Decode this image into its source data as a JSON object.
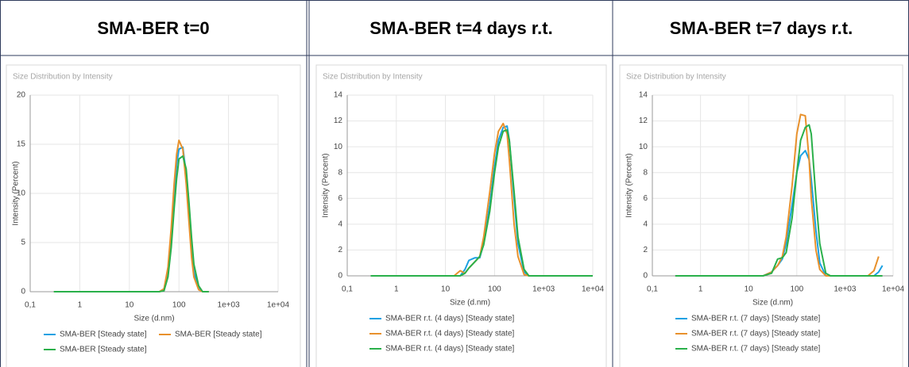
{
  "chart_data": [
    {
      "type": "line",
      "title": "SMA-BER t=0",
      "subtitle": "Size Distribution by Intensity",
      "xlabel": "Size (d.nm)",
      "ylabel": "Intensity (Percent)",
      "log_x": true,
      "grid": true,
      "xlim": [
        0.1,
        10000
      ],
      "xticks": [
        {
          "value": 0.1,
          "label": "0,1"
        },
        1,
        10,
        100,
        {
          "value": 1000,
          "label": "1e+03"
        },
        {
          "value": 10000,
          "label": "1e+04"
        }
      ],
      "ylim": [
        0,
        20
      ],
      "yticks": [
        0,
        5,
        10,
        15,
        20
      ],
      "x": [
        0.3,
        40,
        50,
        60,
        70,
        80,
        90,
        100,
        120,
        140,
        160,
        180,
        200,
        250,
        300,
        400
      ],
      "series": [
        {
          "name": "SMA-BER  [Steady state]",
          "color": "#1ba1e2",
          "values": [
            0,
            0,
            0.2,
            2,
            5.5,
            10,
            13,
            14.5,
            14.7,
            12,
            8,
            4.5,
            2,
            0.3,
            0,
            0
          ]
        },
        {
          "name": "SMA-BER  [Steady state]",
          "color": "#e8912c",
          "values": [
            0,
            0,
            0.3,
            2.5,
            6.5,
            11,
            14,
            15.4,
            14.5,
            11,
            7,
            3.5,
            1.5,
            0.2,
            0,
            0
          ]
        },
        {
          "name": "SMA-BER [Steady state]",
          "color": "#2ab04a",
          "values": [
            0,
            0,
            0.1,
            1.5,
            4.5,
            8.5,
            11.5,
            13.5,
            13.8,
            12.5,
            9,
            5.5,
            2.8,
            0.6,
            0,
            0
          ]
        }
      ]
    },
    {
      "type": "line",
      "title": "SMA-BER t=4 days r.t.",
      "subtitle": "Size Distribution by Intensity",
      "xlabel": "Size (d.nm)",
      "ylabel": "Intensity (Percent)",
      "log_x": true,
      "grid": true,
      "xlim": [
        0.1,
        10000
      ],
      "xticks": [
        {
          "value": 0.1,
          "label": "0,1"
        },
        1,
        10,
        100,
        {
          "value": 1000,
          "label": "1e+03"
        },
        {
          "value": 10000,
          "label": "1e+04"
        }
      ],
      "ylim": [
        0,
        14
      ],
      "yticks": [
        0,
        2,
        4,
        6,
        8,
        10,
        12,
        14
      ],
      "x": [
        0.3,
        15,
        20,
        25,
        30,
        40,
        50,
        60,
        80,
        100,
        120,
        150,
        180,
        200,
        250,
        300,
        400,
        500,
        10000
      ],
      "series": [
        {
          "name": "SMA-BER r.t. (4 days) [Steady state]",
          "color": "#1ba1e2",
          "values": [
            0,
            0,
            0,
            0.5,
            1.2,
            1.4,
            1.4,
            2.5,
            5.5,
            8.5,
            10.5,
            11.5,
            11.6,
            10.5,
            6,
            2.5,
            0.3,
            0,
            0
          ]
        },
        {
          "name": "SMA-BER r.t. (4 days) [Steady state]",
          "color": "#e8912c",
          "values": [
            0,
            0,
            0.4,
            0.2,
            0.6,
            1.1,
            1.5,
            3,
            6.5,
            9.5,
            11.2,
            11.8,
            11,
            9,
            4,
            1.5,
            0.1,
            0,
            0
          ]
        },
        {
          "name": "SMA-BER r.t. (4 days) [Steady state]",
          "color": "#2ab04a",
          "values": [
            0,
            0,
            0,
            0.2,
            0.6,
            1.1,
            1.5,
            2.4,
            5,
            8,
            10,
            11.2,
            11.3,
            10.5,
            6.5,
            3,
            0.5,
            0,
            0
          ]
        }
      ]
    },
    {
      "type": "line",
      "title": "SMA-BER t=7 days r.t.",
      "subtitle": "Size Distribution by Intensity",
      "xlabel": "Size (d.nm)",
      "ylabel": "Intensity (Percent)",
      "log_x": true,
      "grid": true,
      "xlim": [
        0.1,
        10000
      ],
      "xticks": [
        {
          "value": 0.1,
          "label": "0,1"
        },
        1,
        10,
        100,
        {
          "value": 1000,
          "label": "1e+03"
        },
        {
          "value": 10000,
          "label": "1e+04"
        }
      ],
      "ylim": [
        0,
        14
      ],
      "yticks": [
        0,
        2,
        4,
        6,
        8,
        10,
        12,
        14
      ],
      "x": [
        0.3,
        20,
        30,
        40,
        50,
        60,
        80,
        100,
        120,
        150,
        180,
        200,
        250,
        300,
        400,
        500,
        1000,
        3000,
        4000,
        5000,
        6000
      ],
      "series": [
        {
          "name": "SMA-BER r.t. (7 days) [Steady state]",
          "color": "#1ba1e2",
          "values": [
            0,
            0,
            0.3,
            0.8,
            1.3,
            2.5,
            5.5,
            8,
            9.3,
            9.7,
            9,
            7.5,
            3.5,
            1,
            0,
            0,
            0,
            0,
            0,
            0.3,
            0.8
          ]
        },
        {
          "name": "SMA-BER r.t. (7 days) [Steady state]",
          "color": "#e8912c",
          "values": [
            0,
            0,
            0.3,
            0.8,
            1.5,
            3,
            7,
            11,
            12.5,
            12.4,
            9,
            6,
            2,
            0.5,
            0,
            0,
            0,
            0,
            0.4,
            1.5,
            null
          ]
        },
        {
          "name": "SMA-BER r.t. (7 days) [Steady state]",
          "color": "#2ab04a",
          "values": [
            0,
            0,
            0.2,
            1.3,
            1.4,
            1.8,
            4.5,
            8,
            10.5,
            11.5,
            11.7,
            11,
            6,
            2.5,
            0.2,
            0,
            0,
            0,
            0,
            0,
            0
          ]
        }
      ]
    }
  ]
}
